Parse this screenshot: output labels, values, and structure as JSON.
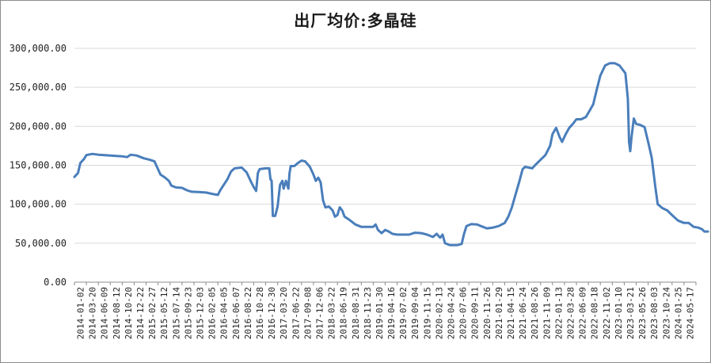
{
  "chart_data": {
    "type": "line",
    "title": "出厂均价:多晶硅",
    "xlabel": "",
    "ylabel": "",
    "ylim": [
      0,
      300000
    ],
    "grid": true,
    "line_color": "#4a7ebb",
    "y_tick_labels": [
      "0.00",
      "50,000.00",
      "100,000.00",
      "150,000.00",
      "200,000.00",
      "250,000.00",
      "300,000.00"
    ],
    "x_tick_labels": [
      "2014-01-02",
      "2014-03-20",
      "2014-06-09",
      "2014-08-12",
      "2014-10-20",
      "2014-12-22",
      "2015-02-27",
      "2015-05-12",
      "2015-07-14",
      "2015-09-23",
      "2015-12-03",
      "2016-02-05",
      "2016-04-05",
      "2016-06-07",
      "2016-08-22",
      "2016-10-28",
      "2016-12-30",
      "2017-03-20",
      "2017-06-22",
      "2017-09-08",
      "2017-12-06",
      "2018-03-22",
      "2018-06-19",
      "2018-08-31",
      "2018-11-23",
      "2019-01-30",
      "2019-04-16",
      "2019-07-02",
      "2019-09-04",
      "2019-11-15",
      "2020-02-13",
      "2020-04-24",
      "2020-07-06",
      "2020-09-11",
      "2020-11-26",
      "2021-01-29",
      "2021-04-15",
      "2021-06-24",
      "2021-08-26",
      "2021-11-09",
      "2022-01-13",
      "2022-03-28",
      "2022-06-09",
      "2022-08-18",
      "2022-11-02",
      "2023-01-10",
      "2023-03-21",
      "2023-05-26",
      "2023-08-03",
      "2023-10-24",
      "2024-01-25",
      "2024-05-17"
    ],
    "series": [
      {
        "points": [
          [
            0,
            135000
          ],
          [
            0.3,
            140000
          ],
          [
            0.5,
            153000
          ],
          [
            0.8,
            158000
          ],
          [
            1.0,
            163000
          ],
          [
            1.5,
            164500
          ],
          [
            2.0,
            163500
          ],
          [
            3.0,
            162500
          ],
          [
            4.0,
            161500
          ],
          [
            4.4,
            160500
          ],
          [
            4.7,
            163500
          ],
          [
            5.2,
            162500
          ],
          [
            5.8,
            159000
          ],
          [
            6.3,
            157000
          ],
          [
            6.7,
            155000
          ],
          [
            6.9,
            148000
          ],
          [
            7.2,
            138000
          ],
          [
            7.6,
            134000
          ],
          [
            7.9,
            130000
          ],
          [
            8.1,
            124000
          ],
          [
            8.5,
            121500
          ],
          [
            9.0,
            121000
          ],
          [
            9.4,
            118000
          ],
          [
            9.8,
            116000
          ],
          [
            10.5,
            115500
          ],
          [
            11.0,
            115000
          ],
          [
            11.6,
            113000
          ],
          [
            12.0,
            112000
          ],
          [
            12.2,
            118000
          ],
          [
            12.5,
            125000
          ],
          [
            12.8,
            132000
          ],
          [
            13.1,
            142000
          ],
          [
            13.4,
            146000
          ],
          [
            14.0,
            147000
          ],
          [
            14.4,
            141000
          ],
          [
            14.8,
            128000
          ],
          [
            15.0,
            122000
          ],
          [
            15.2,
            117000
          ],
          [
            15.35,
            140000
          ],
          [
            15.5,
            145000
          ],
          [
            16.0,
            146000
          ],
          [
            16.3,
            146000
          ],
          [
            16.4,
            132000
          ],
          [
            16.5,
            130000
          ],
          [
            16.6,
            85000
          ],
          [
            16.8,
            85000
          ],
          [
            17.0,
            97000
          ],
          [
            17.2,
            125000
          ],
          [
            17.4,
            130000
          ],
          [
            17.5,
            120000
          ],
          [
            17.7,
            130000
          ],
          [
            17.9,
            120000
          ],
          [
            18.0,
            140000
          ],
          [
            18.1,
            149000
          ],
          [
            18.4,
            149000
          ],
          [
            18.7,
            153000
          ],
          [
            19.0,
            156000
          ],
          [
            19.3,
            155000
          ],
          [
            19.7,
            148000
          ],
          [
            20.0,
            138000
          ],
          [
            20.2,
            130000
          ],
          [
            20.4,
            134000
          ],
          [
            20.6,
            128000
          ],
          [
            20.8,
            105000
          ],
          [
            21.0,
            96000
          ],
          [
            21.3,
            97000
          ],
          [
            21.6,
            92000
          ],
          [
            21.8,
            84000
          ],
          [
            22.0,
            86000
          ],
          [
            22.2,
            96000
          ],
          [
            22.4,
            92000
          ],
          [
            22.6,
            84000
          ],
          [
            23.0,
            80000
          ],
          [
            23.5,
            74000
          ],
          [
            24.0,
            71000
          ],
          [
            24.5,
            71000
          ],
          [
            25.0,
            71000
          ],
          [
            25.2,
            74000
          ],
          [
            25.4,
            67000
          ],
          [
            25.7,
            63000
          ],
          [
            26.0,
            67000
          ],
          [
            26.3,
            65000
          ],
          [
            26.6,
            62000
          ],
          [
            27.0,
            61000
          ],
          [
            27.5,
            61000
          ],
          [
            28.0,
            61000
          ],
          [
            28.5,
            63500
          ],
          [
            29.0,
            63000
          ],
          [
            29.5,
            61000
          ],
          [
            30.0,
            58000
          ],
          [
            30.3,
            62000
          ],
          [
            30.6,
            57000
          ],
          [
            30.8,
            61000
          ],
          [
            31.0,
            50000
          ],
          [
            31.4,
            47500
          ],
          [
            32.0,
            47500
          ],
          [
            32.4,
            49000
          ],
          [
            32.6,
            62000
          ],
          [
            32.8,
            72000
          ],
          [
            33.2,
            74500
          ],
          [
            33.7,
            74000
          ],
          [
            34.0,
            72000
          ],
          [
            34.5,
            69000
          ],
          [
            35.0,
            70000
          ],
          [
            35.5,
            72000
          ],
          [
            36.0,
            76000
          ],
          [
            36.3,
            84000
          ],
          [
            36.6,
            96000
          ],
          [
            36.9,
            112000
          ],
          [
            37.2,
            128000
          ],
          [
            37.5,
            145000
          ],
          [
            37.7,
            148000
          ],
          [
            38.0,
            147000
          ],
          [
            38.3,
            146000
          ],
          [
            38.6,
            151000
          ],
          [
            39.0,
            157000
          ],
          [
            39.4,
            163000
          ],
          [
            39.8,
            175000
          ],
          [
            40.0,
            190000
          ],
          [
            40.3,
            198000
          ],
          [
            40.6,
            186000
          ],
          [
            40.8,
            180000
          ],
          [
            41.1,
            190000
          ],
          [
            41.4,
            198000
          ],
          [
            41.7,
            203000
          ],
          [
            42.0,
            209000
          ],
          [
            42.4,
            209000
          ],
          [
            42.8,
            212000
          ],
          [
            43.1,
            220000
          ],
          [
            43.4,
            228000
          ],
          [
            43.7,
            247000
          ],
          [
            44.0,
            265000
          ],
          [
            44.4,
            278000
          ],
          [
            44.8,
            281000
          ],
          [
            45.2,
            281000
          ],
          [
            45.6,
            278000
          ],
          [
            45.9,
            272000
          ],
          [
            46.1,
            268000
          ],
          [
            46.3,
            235000
          ],
          [
            46.4,
            180000
          ],
          [
            46.5,
            168000
          ],
          [
            46.6,
            185000
          ],
          [
            46.8,
            210000
          ],
          [
            47.0,
            203000
          ],
          [
            47.3,
            202000
          ],
          [
            47.7,
            199000
          ],
          [
            48.0,
            180000
          ],
          [
            48.3,
            160000
          ],
          [
            48.6,
            122000
          ],
          [
            48.8,
            100000
          ],
          [
            49.2,
            95000
          ],
          [
            49.6,
            92000
          ],
          [
            50.0,
            86000
          ],
          [
            50.5,
            79000
          ],
          [
            51.0,
            76000
          ],
          [
            51.4,
            76000
          ],
          [
            51.8,
            71000
          ],
          [
            52.2,
            70000
          ],
          [
            52.5,
            68000
          ],
          [
            52.7,
            65000
          ],
          [
            53.0,
            65000
          ]
        ]
      }
    ]
  }
}
